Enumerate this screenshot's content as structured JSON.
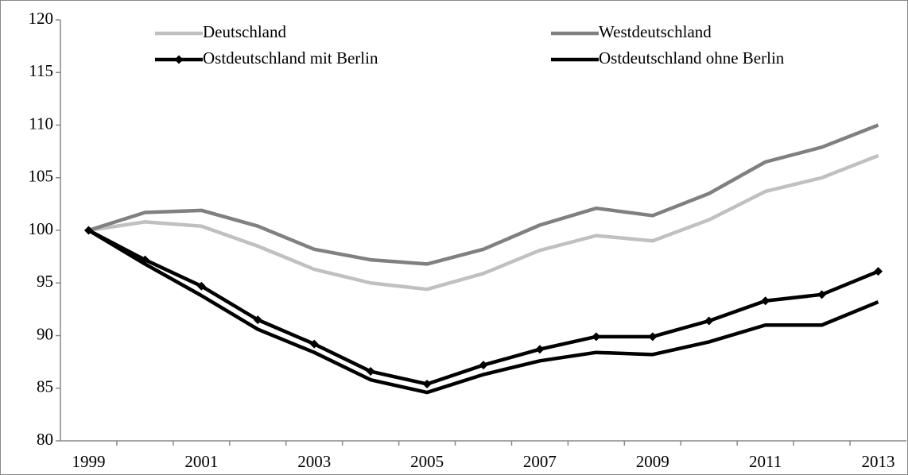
{
  "chart_data": {
    "type": "line",
    "categories": [
      "1999",
      null,
      "2001",
      null,
      "2003",
      null,
      "2005",
      null,
      "2007",
      null,
      "2009",
      null,
      "2011",
      null,
      "2013"
    ],
    "series": [
      {
        "name": "Deutschland",
        "color": "#c0c0c0",
        "values": [
          100,
          100.8,
          100.4,
          98.5,
          96.3,
          95.0,
          94.4,
          95.9,
          98.1,
          99.5,
          99.0,
          101.0,
          103.7,
          105.0,
          107.1
        ]
      },
      {
        "name": "Westdeutschland",
        "color": "#808080",
        "values": [
          100,
          101.7,
          101.9,
          100.4,
          98.2,
          97.2,
          96.8,
          98.2,
          100.5,
          102.1,
          101.4,
          103.5,
          106.5,
          107.9,
          110.0
        ]
      },
      {
        "name": "Ostdeutschland mit Berlin",
        "color": "#000000",
        "marker": "diamond",
        "values": [
          100,
          97.2,
          94.7,
          91.5,
          89.2,
          86.6,
          85.4,
          87.2,
          88.7,
          89.9,
          89.9,
          91.4,
          93.3,
          93.9,
          96.1
        ]
      },
      {
        "name": "Ostdeutschland ohne Berlin",
        "color": "#000000",
        "values": [
          100,
          96.8,
          93.8,
          90.6,
          88.4,
          85.8,
          84.6,
          86.3,
          87.6,
          88.4,
          88.2,
          89.4,
          91.0,
          91.0,
          93.2
        ]
      }
    ],
    "ylim": [
      80,
      120
    ],
    "yticks": [
      80,
      85,
      90,
      95,
      100,
      105,
      110,
      115,
      120
    ],
    "grid": false,
    "legend": "top"
  }
}
